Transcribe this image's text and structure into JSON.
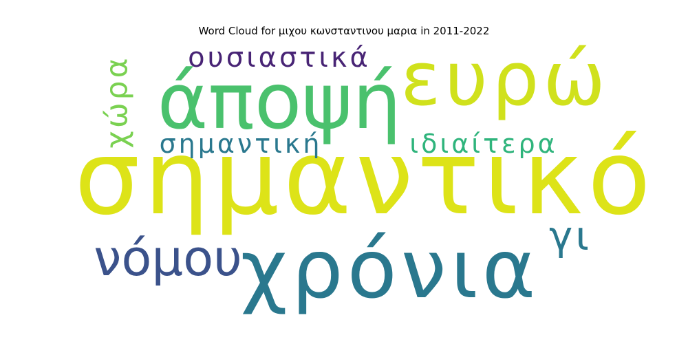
{
  "chart_data": {
    "type": "wordcloud",
    "title": "Word Cloud for μιχου κωνσταντινου μαρια in 2011-2022",
    "words": [
      {
        "text": "σημαντικό",
        "color": "#dde318"
      },
      {
        "text": "χρόνια",
        "color": "#2a788e"
      },
      {
        "text": "άποψή",
        "color": "#4ac16d"
      },
      {
        "text": "ευρώ",
        "color": "#d0e11c"
      },
      {
        "text": "νόμου",
        "color": "#3b528b"
      },
      {
        "text": "ουσιαστικά",
        "color": "#482475"
      },
      {
        "text": "σημαντική",
        "color": "#2a788e"
      },
      {
        "text": "ιδιαίτερα",
        "color": "#2fb47c"
      },
      {
        "text": "χώρα",
        "color": "#7ad151"
      },
      {
        "text": "γι",
        "color": "#2a788e"
      }
    ]
  }
}
